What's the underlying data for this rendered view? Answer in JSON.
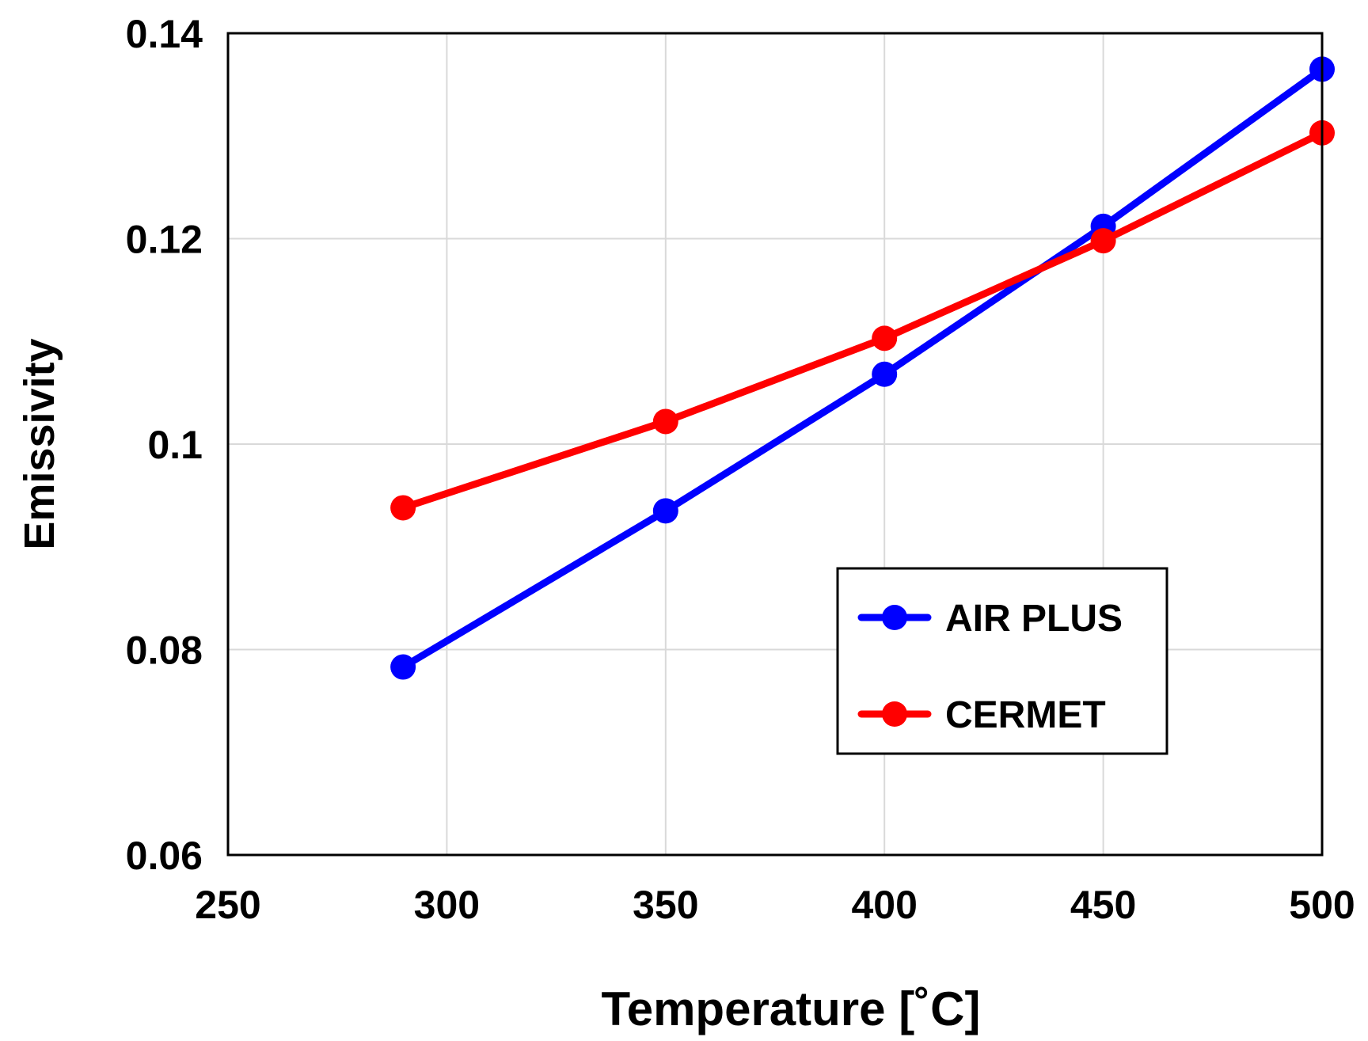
{
  "chart_data": {
    "type": "line",
    "title": "",
    "xlabel": "Temperature [˚C]",
    "ylabel": "Emissivity",
    "xlim": [
      250,
      500
    ],
    "ylim": [
      0.06,
      0.14
    ],
    "xticks": [
      250,
      300,
      350,
      400,
      450,
      500
    ],
    "yticks": [
      0.06,
      0.08,
      0.1,
      0.12,
      0.14
    ],
    "xtick_labels": [
      "250",
      "300",
      "350",
      "400",
      "450",
      "500"
    ],
    "ytick_labels": [
      "0.06",
      "0.08",
      "0.1",
      "0.12",
      "0.14"
    ],
    "grid": true,
    "legend_position": "lower-right",
    "series": [
      {
        "name": "AIR PLUS",
        "color": "#0000ff",
        "x": [
          290,
          350,
          400,
          450,
          500
        ],
        "values": [
          0.0783,
          0.0935,
          0.1068,
          0.1212,
          0.1365
        ]
      },
      {
        "name": "CERMET",
        "color": "#ff0000",
        "x": [
          290,
          350,
          400,
          450,
          500
        ],
        "values": [
          0.0938,
          0.1022,
          0.1103,
          0.1198,
          0.1303
        ]
      }
    ]
  }
}
